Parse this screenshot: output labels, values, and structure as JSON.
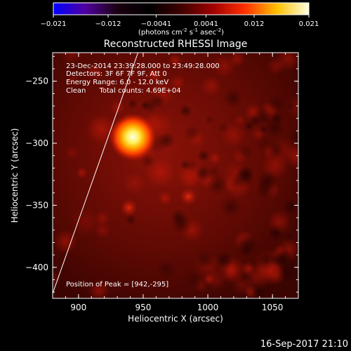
{
  "chart_data": {
    "type": "heatmap",
    "title": "Reconstructed RHESSI Image",
    "xlabel": "Heliocentric X (arcsec)",
    "ylabel": "Heliocentric Y (arcsec)",
    "xlim": [
      880,
      1070
    ],
    "ylim": [
      -425,
      -227
    ],
    "xticks": [
      900,
      950,
      1000,
      1050
    ],
    "yticks": [
      -250,
      -300,
      -350,
      -400
    ],
    "colorbar": {
      "min": -0.021,
      "max": 0.021,
      "ticks": [
        "-0.021",
        "-0.012",
        "-0.0041",
        "0.0041",
        "0.012",
        "0.021"
      ],
      "unit_label_html": "(photons cm<tspan baseline-shift=\"super\" font-size=\"7\">-2</tspan> s<tspan baseline-shift=\"super\" font-size=\"7\">-1</tspan> asec<tspan baseline-shift=\"super\" font-size=\"7\">-2</tspan>)"
    },
    "source_peak": {
      "x": 942,
      "y": -295,
      "value": 0.021
    },
    "secondary_sources": [
      {
        "x": 985,
        "y": -343,
        "value": 0.006
      },
      {
        "x": 939,
        "y": -352,
        "value": 0.005
      }
    ],
    "limb_line": [
      [
        880,
        -421
      ],
      [
        946,
        -227
      ]
    ],
    "colormap": [
      "#0000ff",
      "#5000a0",
      "#1a0010",
      "#000000",
      "#400000",
      "#a00000",
      "#ff3000",
      "#ffc000",
      "#ffffe0"
    ]
  },
  "annotations": {
    "time_range": "23-Dec-2014 23:39:28.000 to 23:49:28.000",
    "detectors": "Detectors: 3F 6F 7F 9F, Att 0",
    "energy_range": "Energy Range: 6.0 - 12.0 keV",
    "clean_counts": "Clean      Total counts: 4.69E+04",
    "peak_position": "Position of Peak = [942,-295]"
  },
  "footer": {
    "timestamp": "16-Sep-2017 21:10"
  }
}
